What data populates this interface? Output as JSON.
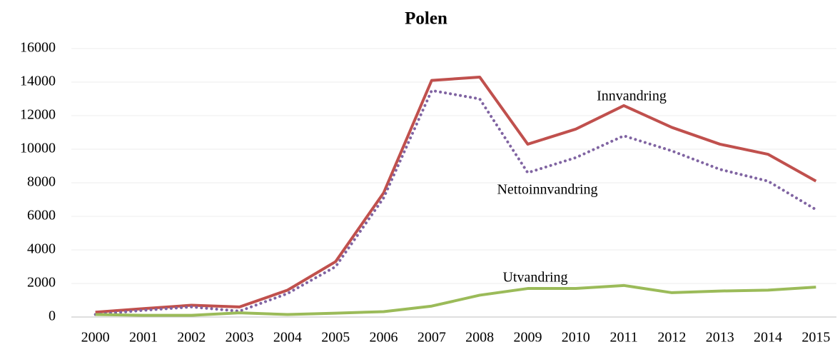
{
  "chart_data": {
    "type": "line",
    "title": "Polen",
    "categories": [
      "2000",
      "2001",
      "2002",
      "2003",
      "2004",
      "2005",
      "2006",
      "2007",
      "2008",
      "2009",
      "2010",
      "2011",
      "2012",
      "2013",
      "2014",
      "2015"
    ],
    "series": [
      {
        "name": "Innvandring",
        "color": "#c0504d",
        "style": "solid",
        "values": [
          290,
          500,
          700,
          600,
          1600,
          3300,
          7400,
          14100,
          14300,
          10300,
          11200,
          12600,
          11300,
          10300,
          9700,
          8100
        ]
      },
      {
        "name": "Nettoinnvandring",
        "color": "#8064a2",
        "style": "dotted",
        "values": [
          150,
          400,
          600,
          350,
          1400,
          3000,
          7100,
          13500,
          13000,
          8600,
          9500,
          10800,
          9900,
          8800,
          8100,
          6400
        ]
      },
      {
        "name": "Utvandring",
        "color": "#9bbb59",
        "style": "solid",
        "values": [
          150,
          100,
          100,
          250,
          150,
          230,
          320,
          650,
          1300,
          1700,
          1700,
          1880,
          1450,
          1550,
          1600,
          1780
        ]
      }
    ],
    "ylim": [
      0,
      16000
    ],
    "yticks": [
      0,
      2000,
      4000,
      6000,
      8000,
      10000,
      12000,
      14000,
      16000
    ],
    "grid": true
  }
}
